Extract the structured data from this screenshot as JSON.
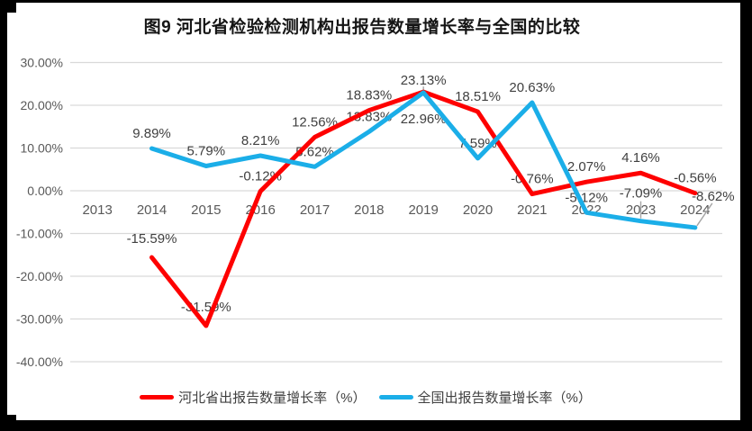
{
  "chart_data": {
    "type": "line",
    "title": "图9 河北省检验检测机构出报告数量增长率与全国的比较",
    "categories": [
      "2013",
      "2014",
      "2015",
      "2016",
      "2017",
      "2018",
      "2019",
      "2020",
      "2021",
      "2022",
      "2023",
      "2024"
    ],
    "series": [
      {
        "name": "河北省出报告数量增长率（%）",
        "color": "#FE0000",
        "values": [
          null,
          -15.59,
          -31.59,
          -0.12,
          12.56,
          18.83,
          23.13,
          18.51,
          -0.76,
          2.07,
          4.16,
          -0.56
        ],
        "labels": [
          "",
          "-15.59%",
          "-31.59%",
          "-0.12%",
          "12.56%",
          "18.83%",
          "23.13%",
          "18.51%",
          "-0.76%",
          "2.07%",
          "4.16%",
          "-0.56%"
        ]
      },
      {
        "name": "全国出报告数量增长率（%）",
        "color": "#1BAEE8",
        "values": [
          null,
          9.89,
          5.79,
          8.21,
          5.62,
          13.83,
          22.96,
          7.59,
          20.63,
          -5.12,
          -7.09,
          -8.62
        ],
        "labels": [
          "",
          "9.89%",
          "5.79%",
          "8.21%",
          "5.62%",
          "13.83%",
          "22.96%",
          "7.59%",
          "20.63%",
          "-5.12%",
          "-7.09%",
          "-8.62%"
        ]
      }
    ],
    "y_ticks": [
      "30.00%",
      "20.00%",
      "10.00%",
      "0.00%",
      "-10.00%",
      "-20.00%",
      "-30.00%",
      "-40.00%"
    ],
    "y_tick_values": [
      30,
      20,
      10,
      0,
      -10,
      -20,
      -30,
      -40
    ],
    "ylim": [
      -40,
      30
    ],
    "grid": true,
    "legend_position": "bottom",
    "colors": {
      "data_label": "#404040",
      "axis_label": "#595959",
      "gridline": "#D9D9D9",
      "leader_line": "#A6A6A6",
      "frame": "#000000",
      "background": "#FFFFFF"
    }
  }
}
